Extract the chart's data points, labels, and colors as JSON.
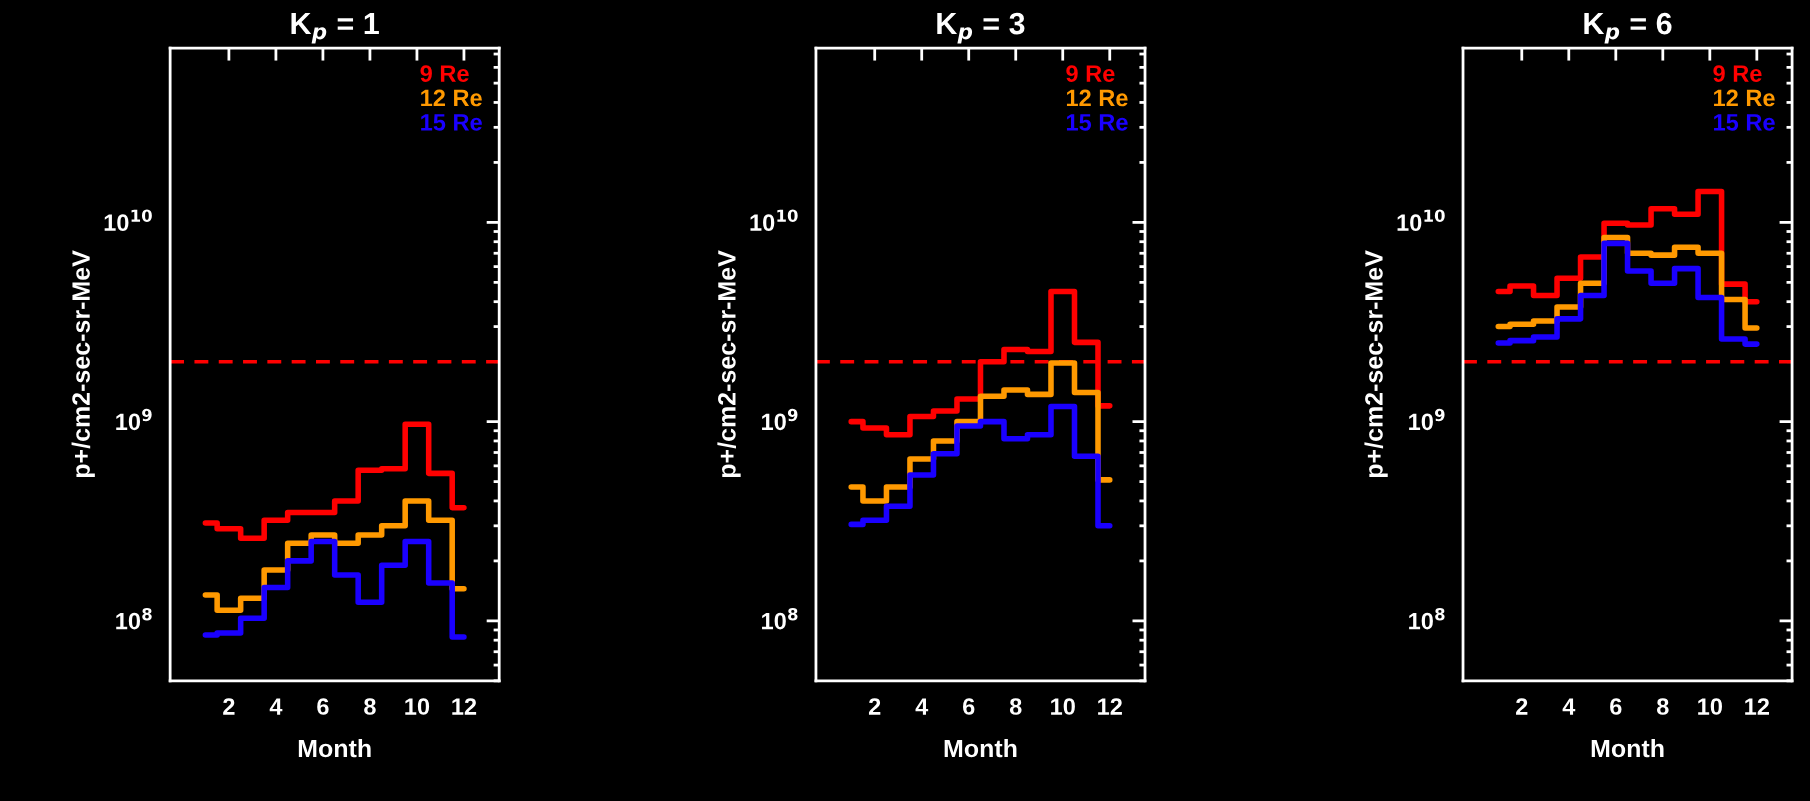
{
  "chart_data": [
    {
      "type": "step",
      "title": "K$_{p}$ = 1",
      "xlabel": "Month",
      "ylabel": "p+/cm2-sec-sr-MeV",
      "log": "y",
      "x": [
        1,
        2,
        3,
        4,
        5,
        6,
        7,
        8,
        9,
        10,
        11,
        12
      ],
      "xlim": [
        -0.5,
        13.5
      ],
      "xticks": [
        2,
        4,
        6,
        8,
        10,
        12
      ],
      "ylim": [
        50000000.0,
        75000000000.0
      ],
      "yticks": [
        {
          "value": 100000000.0,
          "label": "10$^{8}$"
        },
        {
          "value": 1000000000.0,
          "label": "10$^{9}$"
        },
        {
          "value": 10000000000.0,
          "label": "10$^{10}$"
        }
      ],
      "legend": "top right",
      "grid": false,
      "line_style": "solid",
      "series": [
        {
          "name": "9 Re",
          "color": "#ff0000",
          "values": [
            310000000.0,
            290000000.0,
            260000000.0,
            320000000.0,
            350000000.0,
            350000000.0,
            400000000.0,
            570000000.0,
            580000000.0,
            970000000.0,
            550000000.0,
            370000000.0
          ]
        },
        {
          "name": "12 Re",
          "color": "#ff9900",
          "values": [
            135000000.0,
            113000000.0,
            130000000.0,
            180000000.0,
            245000000.0,
            270000000.0,
            245000000.0,
            270000000.0,
            300000000.0,
            400000000.0,
            320000000.0,
            145000000.0
          ]
        },
        {
          "name": "15 Re",
          "color": "#1a00ff",
          "values": [
            85000000.0,
            87000000.0,
            103000000.0,
            147000000.0,
            200000000.0,
            250000000.0,
            170000000.0,
            124000000.0,
            190000000.0,
            250000000.0,
            155000000.0,
            83000000.0
          ]
        }
      ],
      "ref_lines": [
        {
          "axis": "y",
          "value": 2000000000.0,
          "color": "#ff0000",
          "line_style": "dashed"
        }
      ]
    },
    {
      "type": "step",
      "title": "K$_{p}$ = 3",
      "xlabel": "Month",
      "ylabel": "p+/cm2-sec-sr-MeV",
      "log": "y",
      "x": [
        1,
        2,
        3,
        4,
        5,
        6,
        7,
        8,
        9,
        10,
        11,
        12
      ],
      "xlim": [
        -0.5,
        13.5
      ],
      "xticks": [
        2,
        4,
        6,
        8,
        10,
        12
      ],
      "ylim": [
        50000000.0,
        75000000000.0
      ],
      "yticks": [
        {
          "value": 100000000.0,
          "label": "10$^{8}$"
        },
        {
          "value": 1000000000.0,
          "label": "10$^{9}$"
        },
        {
          "value": 10000000000.0,
          "label": "10$^{10}$"
        }
      ],
      "legend": "top right",
      "grid": false,
      "line_style": "solid",
      "series": [
        {
          "name": "9 Re",
          "color": "#ff0000",
          "values": [
            1000000000.0,
            930000000.0,
            860000000.0,
            1060000000.0,
            1130000000.0,
            1300000000.0,
            2000000000.0,
            2300000000.0,
            2250000000.0,
            4500000000.0,
            2500000000.0,
            1200000000.0
          ]
        },
        {
          "name": "12 Re",
          "color": "#ff9900",
          "values": [
            470000000.0,
            400000000.0,
            470000000.0,
            650000000.0,
            800000000.0,
            1000000000.0,
            1340000000.0,
            1440000000.0,
            1370000000.0,
            1970000000.0,
            1400000000.0,
            510000000.0
          ]
        },
        {
          "name": "15 Re",
          "color": "#1a00ff",
          "values": [
            305000000.0,
            320000000.0,
            376000000.0,
            540000000.0,
            690000000.0,
            950000000.0,
            1000000000.0,
            820000000.0,
            860000000.0,
            1190000000.0,
            670000000.0,
            300000000.0
          ]
        }
      ],
      "ref_lines": [
        {
          "axis": "y",
          "value": 2000000000.0,
          "color": "#ff0000",
          "line_style": "dashed"
        }
      ]
    },
    {
      "type": "step",
      "title": "K$_{p}$ = 6",
      "xlabel": "Month",
      "ylabel": "p+/cm2-sec-sr-MeV",
      "log": "y",
      "x": [
        1,
        2,
        3,
        4,
        5,
        6,
        7,
        8,
        9,
        10,
        11,
        12
      ],
      "xlim": [
        -0.5,
        13.5
      ],
      "xticks": [
        2,
        4,
        6,
        8,
        10,
        12
      ],
      "ylim": [
        50000000.0,
        75000000000.0
      ],
      "yticks": [
        {
          "value": 100000000.0,
          "label": "10$^{8}$"
        },
        {
          "value": 1000000000.0,
          "label": "10$^{9}$"
        },
        {
          "value": 10000000000.0,
          "label": "10$^{10}$"
        }
      ],
      "legend": "top right",
      "grid": false,
      "line_style": "solid",
      "series": [
        {
          "name": "9 Re",
          "color": "#ff0000",
          "values": [
            4500000000.0,
            4800000000.0,
            4300000000.0,
            5250000000.0,
            6700000000.0,
            9900000000.0,
            9700000000.0,
            11700000000.0,
            11000000000.0,
            14300000000.0,
            4900000000.0,
            4000000000.0
          ]
        },
        {
          "name": "12 Re",
          "color": "#ff9900",
          "values": [
            3000000000.0,
            3080000000.0,
            3200000000.0,
            3760000000.0,
            4950000000.0,
            8400000000.0,
            7000000000.0,
            6850000000.0,
            7500000000.0,
            7000000000.0,
            4100000000.0,
            2950000000.0
          ]
        },
        {
          "name": "15 Re",
          "color": "#1a00ff",
          "values": [
            2480000000.0,
            2550000000.0,
            2660000000.0,
            3280000000.0,
            4300000000.0,
            7850000000.0,
            5700000000.0,
            4950000000.0,
            5860000000.0,
            4200000000.0,
            2600000000.0,
            2450000000.0
          ]
        }
      ],
      "ref_lines": [
        {
          "axis": "y",
          "value": 2000000000.0,
          "color": "#ff0000",
          "line_style": "dashed"
        }
      ]
    }
  ]
}
